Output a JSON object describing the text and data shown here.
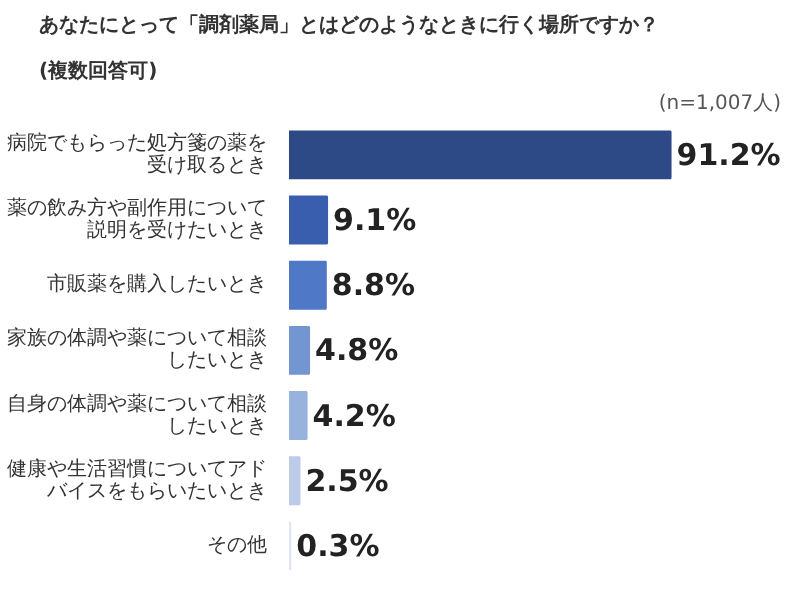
{
  "chart_data": {
    "type": "bar",
    "orientation": "horizontal",
    "title": "あなたにとって「調剤薬局」とはどのようなときに行く場所ですか？",
    "subtitle": "(複数回答可)",
    "categories": [
      "病院でもらった処方箋の薬を受け取るとき",
      "薬の飲み方や副作用について説明を受けたいとき",
      "市販薬を購入したいとき",
      "家族の体調や薬について相談したいとき",
      "自身の体調や薬について相談したいとき",
      "健康や生活習慣についてアドバイスをもらいたいとき",
      "その他"
    ],
    "values": [
      91.2,
      9.1,
      8.8,
      4.8,
      4.2,
      2.5,
      0.3
    ],
    "colors": [
      "#2e4a86",
      "#3a5eae",
      "#4f78c6",
      "#7395d0",
      "#98b2de",
      "#bccbe8",
      "#dfe6f3"
    ],
    "value_labels": [
      "91.2%",
      "9.1%",
      "8.8%",
      "4.8%",
      "4.2%",
      "2.5%",
      "0.3%"
    ],
    "annotations": [
      "(n=1,007人)"
    ],
    "tick_labels": "y"
  }
}
